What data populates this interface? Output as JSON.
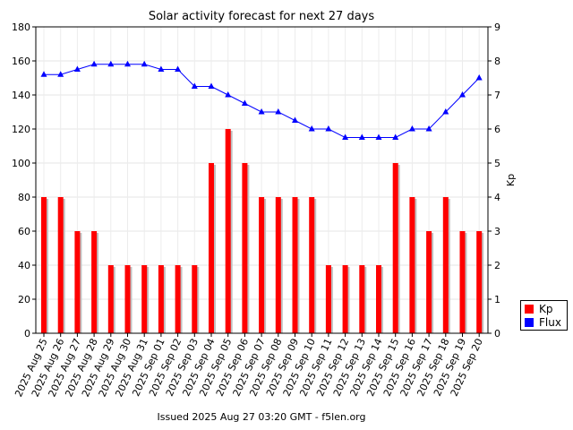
{
  "chart_data": {
    "type": "bar",
    "title": "Solar activity forecast for next 27 days",
    "xlabel": "",
    "ylabel_left": "",
    "ylabel_right": "Kp",
    "categories": [
      "2025 Aug 25",
      "2025 Aug 26",
      "2025 Aug 27",
      "2025 Aug 28",
      "2025 Aug 29",
      "2025 Aug 30",
      "2025 Aug 31",
      "2025 Sep 01",
      "2025 Sep 02",
      "2025 Sep 03",
      "2025 Sep 04",
      "2025 Sep 05",
      "2025 Sep 06",
      "2025 Sep 07",
      "2025 Sep 08",
      "2025 Sep 09",
      "2025 Sep 10",
      "2025 Sep 11",
      "2025 Sep 12",
      "2025 Sep 13",
      "2025 Sep 14",
      "2025 Sep 15",
      "2025 Sep 16",
      "2025 Sep 17",
      "2025 Sep 18",
      "2025 Sep 19",
      "2025 Sep 20"
    ],
    "series": [
      {
        "name": "Kp",
        "type": "bar",
        "axis": "right",
        "color": "#ff0000",
        "values": [
          4,
          4,
          3,
          3,
          2,
          2,
          2,
          2,
          2,
          2,
          5,
          6,
          5,
          4,
          4,
          4,
          4,
          2,
          2,
          2,
          2,
          5,
          4,
          3,
          4,
          3,
          3
        ]
      },
      {
        "name": "Flux",
        "type": "line",
        "axis": "left",
        "color": "#0000ff",
        "values": [
          152,
          152,
          155,
          158,
          158,
          158,
          158,
          155,
          155,
          145,
          145,
          140,
          135,
          130,
          130,
          125,
          120,
          120,
          115,
          115,
          115,
          115,
          120,
          120,
          130,
          140,
          150
        ]
      }
    ],
    "ylim_left": [
      0,
      180
    ],
    "yticks_left": [
      "0",
      "20",
      "40",
      "60",
      "80",
      "100",
      "120",
      "140",
      "160",
      "180"
    ],
    "ylim_right": [
      0,
      9
    ],
    "yticks_right": [
      "0",
      "1",
      "2",
      "3",
      "4",
      "5",
      "6",
      "7",
      "8",
      "9"
    ],
    "grid": true,
    "legend_position": "bottom-right, outside plot"
  },
  "legend": {
    "items": [
      {
        "label": "Kp",
        "color": "#ff0000"
      },
      {
        "label": "Flux",
        "color": "#0000ff"
      }
    ]
  },
  "footer": "Issued 2025 Aug 27 03:20 GMT - f5len.org"
}
